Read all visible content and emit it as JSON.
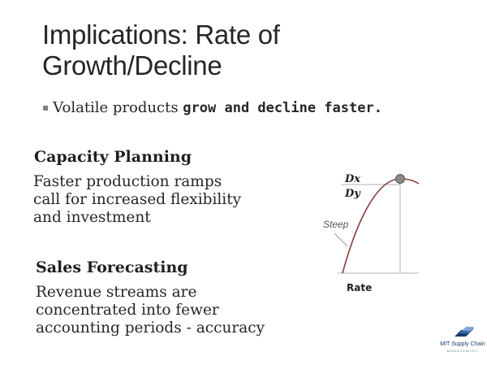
{
  "slide": {
    "title_line1": "Implications: Rate of",
    "title_line2": "Growth/Decline",
    "bullet_marker": "▪",
    "bullet_text": "Volatile products ",
    "bullet_bold": "grow and decline faster.",
    "capacity_heading": "Capacity Planning",
    "capacity_text": "Faster production ramps\ncall for increased flexibility\nand investment",
    "sales_heading": "Sales Forecasting",
    "sales_text": "Revenue streams are\nconcentrated into fewer\naccounting periods - accuracy"
  },
  "diagram": {
    "dx_label": "Dx",
    "dy_label": "Dy",
    "steep_label": "Steep",
    "rate_label": "Rate",
    "curve_color": "#8c3a3a",
    "point_color": "#8a8a8a"
  },
  "logo": {
    "name": "MIT Supply Chain",
    "sub": "MANAGEMENT",
    "color": "#1a3d6e"
  }
}
